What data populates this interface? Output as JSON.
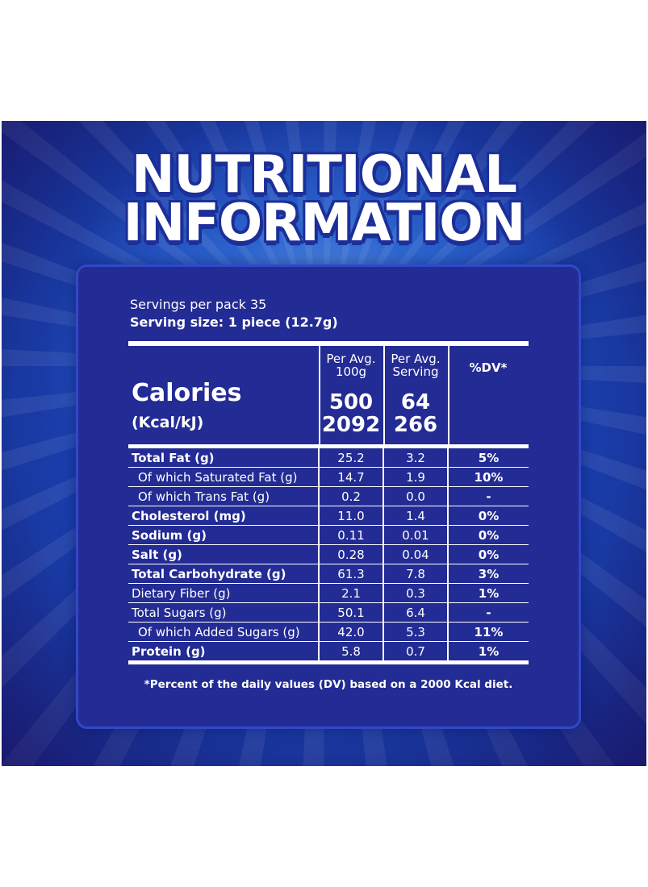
{
  "title": {
    "line1": "NUTRITIONAL",
    "line2": "INFORMATION"
  },
  "servings": {
    "per_pack": "Servings per pack 35",
    "size": "Serving size:  1 piece  (12.7g)"
  },
  "columns": {
    "per100_head": "Per Avg. 100g",
    "per_serving_head": "Per Avg. Serving",
    "dv_head": "%DV*"
  },
  "calories": {
    "label": "Calories",
    "unit": "(Kcal/kJ)",
    "per100_kcal": "500",
    "per100_kj": "2092",
    "serving_kcal": "64",
    "serving_kj": "266"
  },
  "rows": [
    {
      "name": "Total Fat (g)",
      "per100": "25.2",
      "serving": "3.2",
      "dv": "5%"
    },
    {
      "name": "Of which Saturated Fat (g)",
      "per100": "14.7",
      "serving": "1.9",
      "dv": "10%"
    },
    {
      "name": "Of which Trans Fat (g)",
      "per100": "0.2",
      "serving": "0.0",
      "dv": "-"
    },
    {
      "name": "Cholesterol (mg)",
      "per100": "11.0",
      "serving": "1.4",
      "dv": "0%"
    },
    {
      "name": "Sodium (g)",
      "per100": "0.11",
      "serving": "0.01",
      "dv": "0%"
    },
    {
      "name": "Salt (g)",
      "per100": "0.28",
      "serving": "0.04",
      "dv": "0%"
    },
    {
      "name": "Total Carbohydrate (g)",
      "per100": "61.3",
      "serving": "7.8",
      "dv": "3%"
    },
    {
      "name": "Dietary Fiber (g)",
      "per100": "2.1",
      "serving": "0.3",
      "dv": "1%"
    },
    {
      "name": "Total Sugars (g)",
      "per100": "50.1",
      "serving": "6.4",
      "dv": "-"
    },
    {
      "name": "Of which Added Sugars (g)",
      "per100": "42.0",
      "serving": "5.3",
      "dv": "11%"
    },
    {
      "name": "Protein (g)",
      "per100": "5.8",
      "serving": "0.7",
      "dv": "1%"
    }
  ],
  "footnote": "*Percent of the daily values (DV) based on a 2000 Kcal diet.",
  "colors": {
    "panel": "#232b94",
    "background": "#1d4fc0",
    "text": "#ffffff"
  }
}
